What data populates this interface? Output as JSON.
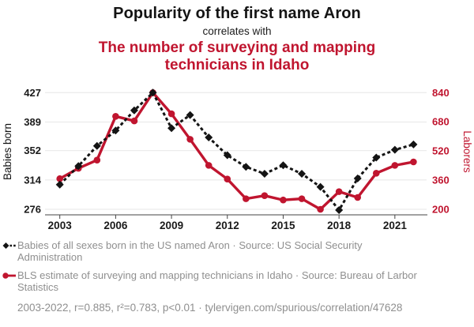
{
  "header": {
    "title": "Popularity of the first name Aron",
    "connector": "correlates with",
    "subtitle": "The number of surveying and mapping technicians in Idaho"
  },
  "colors": {
    "accent_red": "#c0152f",
    "series_black": "#141414",
    "grid_line": "#ececec",
    "axis_line": "#444444",
    "muted_text": "#8f8f8f"
  },
  "chart_data": {
    "type": "line",
    "x": [
      2003,
      2004,
      2005,
      2006,
      2007,
      2008,
      2009,
      2010,
      2011,
      2012,
      2013,
      2014,
      2015,
      2016,
      2017,
      2018,
      2019,
      2020,
      2021,
      2022
    ],
    "series": [
      {
        "name": "Babies of all sexes born in the US named Aron",
        "axis": "left",
        "marker": "diamond",
        "dash": true,
        "color": "#141414",
        "width": 3,
        "values": [
          308,
          332,
          358,
          378,
          404,
          427,
          381,
          398,
          369,
          346,
          331,
          322,
          333,
          322,
          305,
          275,
          316,
          343,
          353,
          360
        ]
      },
      {
        "name": "BLS estimate of surveying and mapping technicians in Idaho",
        "axis": "right",
        "marker": "circle",
        "dash": false,
        "color": "#c0152f",
        "width": 3.4,
        "values": [
          368,
          425,
          470,
          710,
          685,
          840,
          724,
          584,
          441,
          366,
          258,
          275,
          251,
          258,
          200,
          297,
          265,
          398,
          441,
          460
        ]
      }
    ],
    "left_axis": {
      "label": "Babies born",
      "ticks": [
        276,
        314,
        352,
        389,
        427
      ],
      "min": 276,
      "max": 427
    },
    "right_axis": {
      "label": "Laborers",
      "ticks": [
        200,
        360,
        520,
        680,
        840
      ],
      "min": 200,
      "max": 840
    },
    "x_axis": {
      "ticks": [
        2003,
        2006,
        2009,
        2012,
        2015,
        2018,
        2021
      ],
      "min": 2003,
      "max": 2022
    },
    "grid": "horizontal-only",
    "legend_position": "below"
  },
  "legend": [
    {
      "marker": "diamond-dashed-icon",
      "text": "Babies of all sexes born in the US named Aron · Source: US Social Security Administration"
    },
    {
      "marker": "circle-solid-icon",
      "text": "BLS estimate of surveying and mapping technicians in Idaho · Source: Bureau of Larbor Statistics"
    }
  ],
  "footer": {
    "text": "2003-2022, r=0.885, r²=0.783, p<0.01 · tylervigen.com/spurious/correlation/47628"
  }
}
